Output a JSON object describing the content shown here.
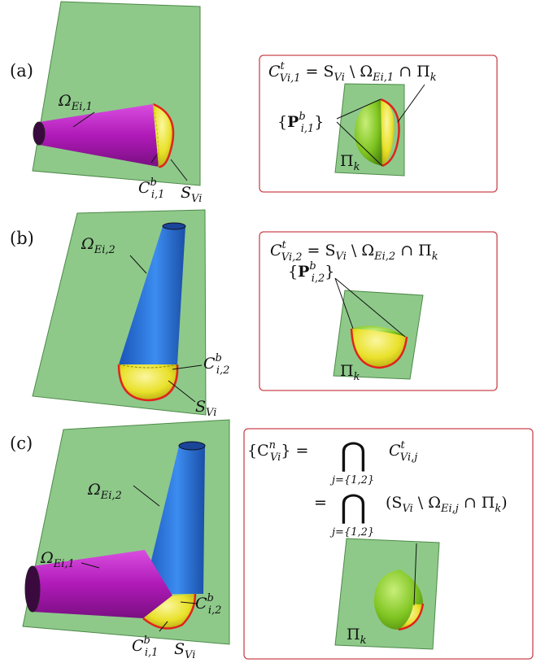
{
  "panels": {
    "a": {
      "tag": "(a)",
      "omega": "Ω",
      "omega_sub": "Ei,1",
      "c_main": "C",
      "c_sup": "b",
      "c_sub": "i,1",
      "s_main": "S",
      "s_sub": "Vi",
      "box": {
        "eq_c": "C",
        "eq_c_sup": "t",
        "eq_c_sub": "Vi,1",
        "eq_rest_s": " = S",
        "eq_rest_s_sub": "Vi",
        "eq_setminus": " \\ Ω",
        "eq_omega_sub": "Ei,1",
        "eq_cap": " ∩ Π",
        "eq_pi_sub": "k",
        "p_open": "{",
        "p_main": "P",
        "p_sup": "b",
        "p_sub": "i,1",
        "p_close": "}",
        "pi": "Π",
        "pi_sub": "k"
      }
    },
    "b": {
      "tag": "(b)",
      "omega": "Ω",
      "omega_sub": "Ei,2",
      "c_main": "C",
      "c_sup": "b",
      "c_sub": "i,2",
      "s_main": "S",
      "s_sub": "Vi",
      "box": {
        "eq_c": "C",
        "eq_c_sup": "t",
        "eq_c_sub": "Vi,2",
        "eq_rest_s": " = S",
        "eq_rest_s_sub": "Vi",
        "eq_setminus": " \\ Ω",
        "eq_omega_sub": "Ei,2",
        "eq_cap": " ∩ Π",
        "eq_pi_sub": "k",
        "p_open": "{",
        "p_main": "P",
        "p_sup": "b",
        "p_sub": "i,2",
        "p_close": "}",
        "pi": "Π",
        "pi_sub": "k"
      }
    },
    "c": {
      "tag": "(c)",
      "omega2": "Ω",
      "omega2_sub": "Ei,2",
      "omega1": "Ω",
      "omega1_sub": "Ei,1",
      "c2_main": "C",
      "c2_sup": "b",
      "c2_sub": "i,2",
      "c1_main": "C",
      "c1_sup": "b",
      "c1_sub": "i,1",
      "s_main": "S",
      "s_sub": "Vi",
      "box": {
        "l1_open": "{C",
        "l1_sup": "n",
        "l1_sub": "Vi",
        "l1_close": "} =",
        "bigcap": "⋂",
        "l1_idx": "j={1,2}",
        "l1_rhs": "C",
        "l1_rhs_sup": "t",
        "l1_rhs_sub": "Vi,j",
        "l2_eq": "=",
        "l2_idx": "j={1,2}",
        "l2_rhs_a": "(S",
        "l2_rhs_a_sub": "Vi",
        "l2_rhs_b": " \\ Ω",
        "l2_rhs_b_sub": "Ei,j",
        "l2_rhs_c": " ∩ Π",
        "l2_rhs_c_sub": "k",
        "l2_rhs_d": ")",
        "pi": "Π",
        "pi_sub": "k"
      }
    }
  },
  "colors": {
    "plane": "#8ec98a",
    "plane_edge": "#4d8a48",
    "magenta": "#b01ab8",
    "blue": "#2a6ed8",
    "yellow": "#e9e12a",
    "green_hemi": "#7fc521",
    "red": "#e0241b",
    "box": "#c9464d"
  }
}
